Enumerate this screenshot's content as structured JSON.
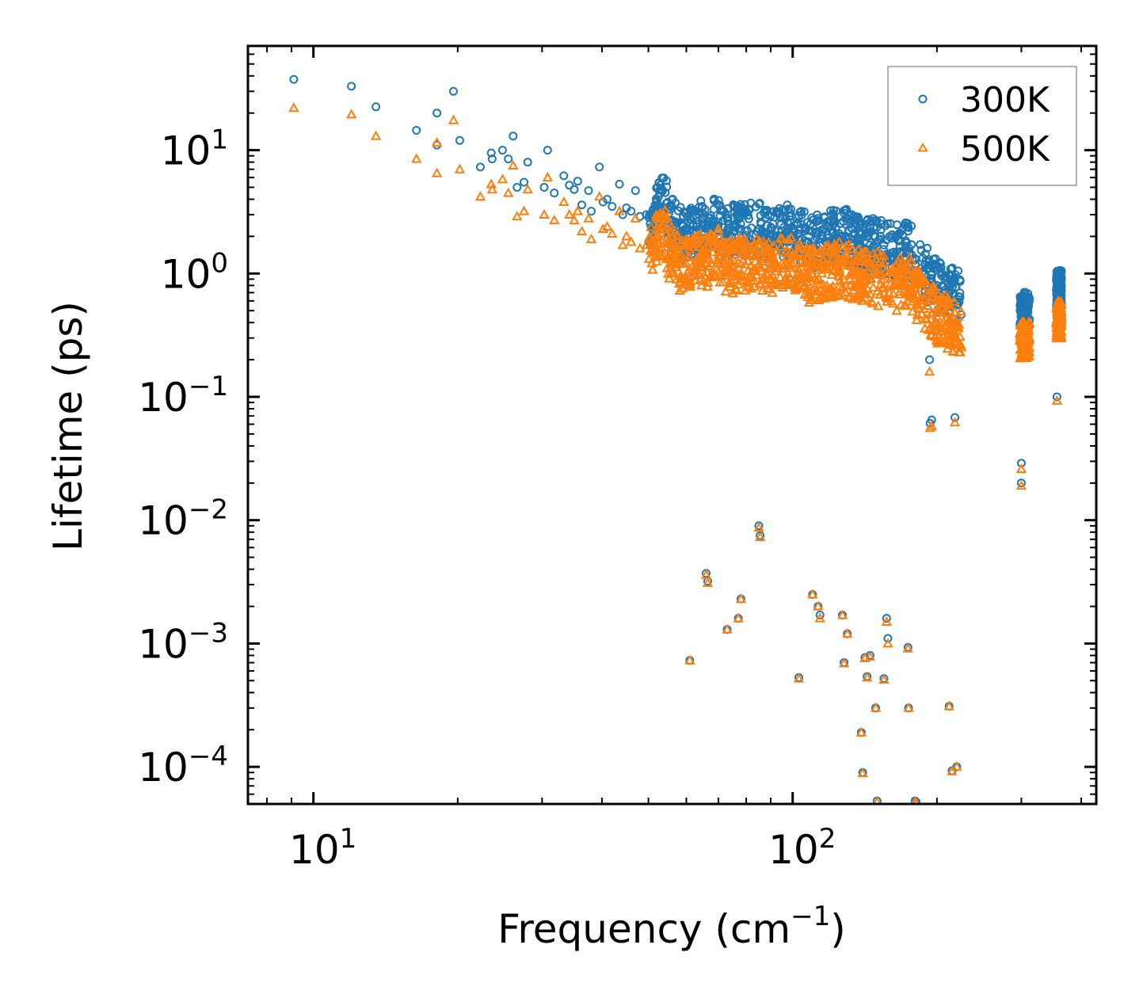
{
  "chart_data": {
    "type": "scatter",
    "xscale": "log",
    "yscale": "log",
    "xlim": [
      7.3,
      430
    ],
    "ylim": [
      5e-05,
      70
    ],
    "xlabel": {
      "main": "Frequency (cm",
      "sup": "−1",
      "end": ")"
    },
    "ylabel": "Lifetime (ps)",
    "x_major_ticks": [
      {
        "value": 10,
        "base": "10",
        "exp": "1"
      },
      {
        "value": 100,
        "base": "10",
        "exp": "2"
      }
    ],
    "y_major_ticks": [
      {
        "value": 10,
        "base": "10",
        "exp": "1"
      },
      {
        "value": 1,
        "base": "10",
        "exp": "0"
      },
      {
        "value": 0.1,
        "base": "10",
        "exp": "−1"
      },
      {
        "value": 0.01,
        "base": "10",
        "exp": "−2"
      },
      {
        "value": 0.001,
        "base": "10",
        "exp": "−3"
      },
      {
        "value": 0.0001,
        "base": "10",
        "exp": "−4"
      }
    ],
    "legend": {
      "position": "top-right"
    },
    "series": [
      {
        "name": "300K",
        "marker": "circle",
        "color": "#1f77b4",
        "points": [
          [
            9.1,
            37.5
          ],
          [
            12,
            33
          ],
          [
            13.5,
            22.5
          ],
          [
            16.4,
            14.5
          ],
          [
            18.1,
            20
          ],
          [
            18.1,
            11
          ],
          [
            19.6,
            30
          ],
          [
            20.2,
            12
          ],
          [
            22.3,
            7.3
          ],
          [
            23.5,
            9.5
          ],
          [
            23.6,
            8.5
          ],
          [
            24.8,
            10
          ],
          [
            25.5,
            8.5
          ],
          [
            26.1,
            13
          ],
          [
            26.6,
            5
          ],
          [
            27.5,
            5.5
          ],
          [
            28,
            8
          ],
          [
            30.3,
            5
          ],
          [
            30.8,
            10
          ],
          [
            31.8,
            4.5
          ],
          [
            33.3,
            6.2
          ],
          [
            34.2,
            5.2
          ],
          [
            35,
            4.8
          ],
          [
            35.6,
            5.6
          ],
          [
            36.3,
            3.6
          ],
          [
            37.5,
            4.7
          ],
          [
            38,
            3.2
          ],
          [
            39.5,
            7.3
          ],
          [
            40.2,
            3.8
          ],
          [
            41,
            4
          ],
          [
            42,
            3.5
          ],
          [
            43.5,
            5.3
          ],
          [
            44.2,
            3
          ],
          [
            45,
            3.4
          ],
          [
            46,
            3.2
          ],
          [
            47,
            4.7
          ],
          [
            48,
            2.9
          ],
          [
            49.5,
            3
          ],
          [
            51,
            2.8
          ],
          [
            52,
            3.5
          ],
          [
            54.5,
            3.7
          ],
          [
            55,
            2.5
          ],
          [
            56,
            2.7
          ],
          [
            58,
            2.1
          ],
          [
            60,
            2.2
          ],
          [
            63,
            2.4
          ],
          [
            66,
            2.3
          ],
          [
            70,
            2.6
          ],
          [
            73,
            2.1
          ],
          [
            78,
            2.3
          ],
          [
            85,
            2.3
          ],
          [
            90,
            2
          ],
          [
            95,
            2.2
          ],
          [
            100,
            2.3
          ],
          [
            108,
            1.8
          ],
          [
            115,
            1.9
          ],
          [
            125,
            2.1
          ],
          [
            135,
            1.9
          ],
          [
            145,
            1.7
          ],
          [
            155,
            1.7
          ],
          [
            165,
            1.5
          ],
          [
            175,
            1.6
          ],
          [
            185,
            1.1
          ],
          [
            200,
            0.8
          ],
          [
            212,
            0.72
          ],
          [
            222,
            0.65
          ],
          [
            193,
            0.2
          ],
          [
            193.5,
            0.061
          ],
          [
            195,
            0.065
          ],
          [
            218,
            0.068
          ],
          [
            302,
            0.55
          ],
          [
            304,
            0.45
          ],
          [
            306,
            0.5
          ],
          [
            310,
            0.6
          ],
          [
            300,
            0.029
          ],
          [
            300,
            0.02
          ],
          [
            358,
            1.02
          ],
          [
            360,
            0.95
          ],
          [
            362,
            0.88
          ],
          [
            356,
            0.1
          ],
          [
            61,
            0.00073
          ],
          [
            66,
            0.0037
          ],
          [
            66.5,
            0.0032
          ],
          [
            73,
            0.0013
          ],
          [
            77,
            0.0016
          ],
          [
            78,
            0.0023
          ],
          [
            85,
            0.009
          ],
          [
            85.5,
            0.0075
          ],
          [
            103,
            0.00053
          ],
          [
            110,
            0.0025
          ],
          [
            113,
            0.002
          ],
          [
            114,
            0.0017
          ],
          [
            127,
            0.0017
          ],
          [
            128,
            0.0007
          ],
          [
            130,
            0.0012
          ],
          [
            139,
            0.00019
          ],
          [
            140,
            9e-05
          ],
          [
            141.5,
            0.00077
          ],
          [
            143,
            0.00054
          ],
          [
            145,
            0.0008
          ],
          [
            149,
            0.0003
          ],
          [
            150,
            5.3e-05
          ],
          [
            155,
            0.00052
          ],
          [
            157,
            0.0016
          ],
          [
            158,
            0.0011
          ],
          [
            174,
            0.00093
          ],
          [
            174.5,
            0.0003
          ],
          [
            180,
            5.3e-05
          ],
          [
            181,
            5.2e-05
          ],
          [
            212,
            0.00031
          ],
          [
            215,
            9.3e-05
          ],
          [
            220,
            0.0001
          ]
        ]
      },
      {
        "name": "500K",
        "marker": "triangle",
        "color": "#ff7f0e",
        "points": [
          [
            9.1,
            22
          ],
          [
            12,
            19.5
          ],
          [
            13.5,
            13
          ],
          [
            16.4,
            8.5
          ],
          [
            18.1,
            11.5
          ],
          [
            18.1,
            6.5
          ],
          [
            19.6,
            17.5
          ],
          [
            20.2,
            7
          ],
          [
            22.3,
            4.2
          ],
          [
            23.5,
            5.3
          ],
          [
            23.6,
            4.8
          ],
          [
            24.8,
            5.8
          ],
          [
            25.5,
            4.5
          ],
          [
            26.1,
            7.5
          ],
          [
            26.6,
            2.9
          ],
          [
            27.5,
            3.2
          ],
          [
            28,
            4.8
          ],
          [
            30.3,
            3
          ],
          [
            30.8,
            6
          ],
          [
            31.8,
            2.7
          ],
          [
            33.3,
            3.8
          ],
          [
            34.2,
            3
          ],
          [
            35,
            2.7
          ],
          [
            35.6,
            3.2
          ],
          [
            36.3,
            2.2
          ],
          [
            37.5,
            2.8
          ],
          [
            38,
            1.9
          ],
          [
            39.5,
            4.2
          ],
          [
            40.2,
            2.3
          ],
          [
            41,
            2.4
          ],
          [
            42,
            2.1
          ],
          [
            43.5,
            3.2
          ],
          [
            44.2,
            1.7
          ],
          [
            45,
            2
          ],
          [
            46,
            1.8
          ],
          [
            47,
            2.8
          ],
          [
            48,
            1.6
          ],
          [
            49.5,
            1.7
          ],
          [
            51,
            1.6
          ],
          [
            52,
            2
          ],
          [
            54.5,
            2.1
          ],
          [
            55,
            1.4
          ],
          [
            56,
            1.5
          ],
          [
            58,
            1.2
          ],
          [
            60,
            1.2
          ],
          [
            63,
            1.3
          ],
          [
            66,
            1.2
          ],
          [
            70,
            1.4
          ],
          [
            73,
            1.1
          ],
          [
            78,
            1.2
          ],
          [
            85,
            1.2
          ],
          [
            90,
            1.1
          ],
          [
            95,
            1.2
          ],
          [
            100,
            1.2
          ],
          [
            108,
            0.95
          ],
          [
            115,
            1
          ],
          [
            125,
            1.1
          ],
          [
            135,
            1
          ],
          [
            145,
            0.9
          ],
          [
            155,
            0.9
          ],
          [
            165,
            0.8
          ],
          [
            175,
            0.85
          ],
          [
            185,
            0.6
          ],
          [
            200,
            0.45
          ],
          [
            212,
            0.4
          ],
          [
            222,
            0.36
          ],
          [
            193,
            0.16
          ],
          [
            193.5,
            0.056
          ],
          [
            195,
            0.058
          ],
          [
            218,
            0.062
          ],
          [
            302,
            0.3
          ],
          [
            304,
            0.26
          ],
          [
            306,
            0.28
          ],
          [
            310,
            0.32
          ],
          [
            300,
            0.026
          ],
          [
            300,
            0.019
          ],
          [
            358,
            0.6
          ],
          [
            360,
            0.55
          ],
          [
            362,
            0.5
          ],
          [
            356,
            0.093
          ],
          [
            61,
            0.00073
          ],
          [
            66,
            0.0036
          ],
          [
            66.5,
            0.0031
          ],
          [
            73,
            0.0013
          ],
          [
            77,
            0.0016
          ],
          [
            78,
            0.0023
          ],
          [
            85,
            0.0087
          ],
          [
            85.5,
            0.0073
          ],
          [
            103,
            0.00052
          ],
          [
            110,
            0.0025
          ],
          [
            113,
            0.002
          ],
          [
            114,
            0.0016
          ],
          [
            127,
            0.0017
          ],
          [
            128,
            0.00069
          ],
          [
            130,
            0.0012
          ],
          [
            139,
            0.00019
          ],
          [
            140,
            8.9e-05
          ],
          [
            141.5,
            0.00076
          ],
          [
            143,
            0.00053
          ],
          [
            145,
            0.00078
          ],
          [
            149,
            0.0003
          ],
          [
            150,
            5.2e-05
          ],
          [
            155,
            0.00051
          ],
          [
            157,
            0.0015
          ],
          [
            158,
            0.001
          ],
          [
            174,
            0.00091
          ],
          [
            174.5,
            0.0003
          ],
          [
            180,
            5.2e-05
          ],
          [
            181,
            5.1e-05
          ],
          [
            212,
            0.00031
          ],
          [
            215,
            9.2e-05
          ],
          [
            220,
            0.0001
          ]
        ]
      }
    ],
    "band_clusters": [
      {
        "x_min": 50,
        "x_max": 225
      },
      {
        "x_min": 298,
        "x_max": 312
      },
      {
        "x_min": 355,
        "x_max": 364
      }
    ]
  }
}
